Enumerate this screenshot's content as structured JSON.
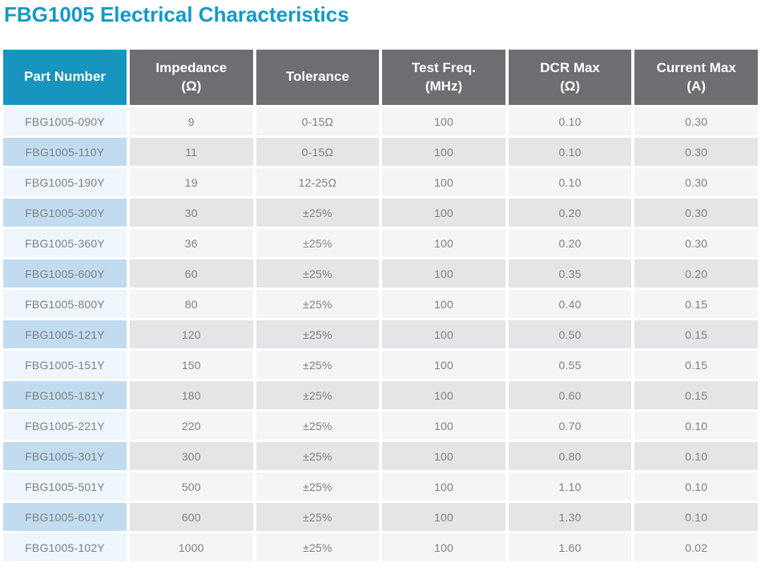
{
  "page": {
    "title": "FBG1005 Electrical Characteristics"
  },
  "colors": {
    "title_text": "#129AC7",
    "header_part_bg": "#1795BF",
    "header_bg": "#6D6E71",
    "header_text": "#FFFFFF",
    "row_odd_part_bg": "#EEF6FB",
    "row_even_part_bg": "#C2DCEF",
    "row_odd_bg": "#F5F5F6",
    "row_even_bg": "#E5E5E7",
    "body_text": "#7E8084"
  },
  "table": {
    "columns": [
      {
        "key": "part-number",
        "label": "Part Number"
      },
      {
        "key": "impedance",
        "label": "Impedance\n(Ω)"
      },
      {
        "key": "tolerance",
        "label": "Tolerance"
      },
      {
        "key": "test-freq",
        "label": "Test Freq.\n(MHz)"
      },
      {
        "key": "dcr-max",
        "label": "DCR Max\n(Ω)"
      },
      {
        "key": "current-max",
        "label": "Current Max\n(A)"
      }
    ],
    "rows": [
      [
        "FBG1005-090Y",
        "9",
        "0-15Ω",
        "100",
        "0.10",
        "0.30"
      ],
      [
        "FBG1005-110Y",
        "11",
        "0-15Ω",
        "100",
        "0.10",
        "0.30"
      ],
      [
        "FBG1005-190Y",
        "19",
        "12-25Ω",
        "100",
        "0.10",
        "0.30"
      ],
      [
        "FBG1005-300Y",
        "30",
        "±25%",
        "100",
        "0.20",
        "0.30"
      ],
      [
        "FBG1005-360Y",
        "36",
        "±25%",
        "100",
        "0.20",
        "0.30"
      ],
      [
        "FBG1005-600Y",
        "60",
        "±25%",
        "100",
        "0.35",
        "0.20"
      ],
      [
        "FBG1005-800Y",
        "80",
        "±25%",
        "100",
        "0.40",
        "0.15"
      ],
      [
        "FBG1005-121Y",
        "120",
        "±25%",
        "100",
        "0.50",
        "0.15"
      ],
      [
        "FBG1005-151Y",
        "150",
        "±25%",
        "100",
        "0.55",
        "0.15"
      ],
      [
        "FBG1005-181Y",
        "180",
        "±25%",
        "100",
        "0.60",
        "0.15"
      ],
      [
        "FBG1005-221Y",
        "220",
        "±25%",
        "100",
        "0.70",
        "0.10"
      ],
      [
        "FBG1005-301Y",
        "300",
        "±25%",
        "100",
        "0.80",
        "0.10"
      ],
      [
        "FBG1005-501Y",
        "500",
        "±25%",
        "100",
        "1.10",
        "0.10"
      ],
      [
        "FBG1005-601Y",
        "600",
        "±25%",
        "100",
        "1.30",
        "0.10"
      ],
      [
        "FBG1005-102Y",
        "1000",
        "±25%",
        "100",
        "1.60",
        "0.02"
      ]
    ]
  }
}
